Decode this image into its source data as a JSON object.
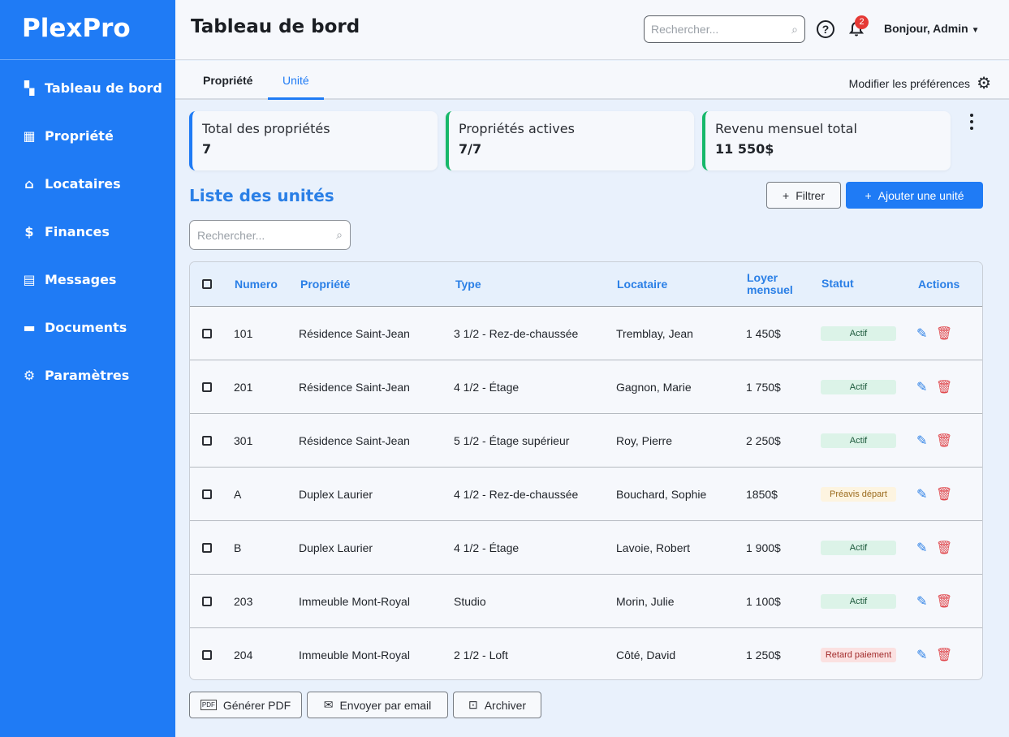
{
  "app": {
    "logo": "PlexPro"
  },
  "sidebar": {
    "items": [
      {
        "label": "Tableau de bord",
        "icon": "dashboard-icon",
        "glyph": "▚"
      },
      {
        "label": "Propriété",
        "icon": "building-icon",
        "glyph": "▦"
      },
      {
        "label": "Locataires",
        "icon": "house-icon",
        "glyph": "⌂"
      },
      {
        "label": "Finances",
        "icon": "dollar-icon",
        "glyph": "$"
      },
      {
        "label": "Messages",
        "icon": "message-icon",
        "glyph": "▤"
      },
      {
        "label": "Documents",
        "icon": "folder-icon",
        "glyph": "▬"
      },
      {
        "label": "Paramètres",
        "icon": "gear-icon",
        "glyph": "⚙"
      }
    ]
  },
  "header": {
    "title": "Tableau de bord",
    "search_placeholder": "Rechercher...",
    "notifications": "2",
    "user": "Bonjour, Admin"
  },
  "tabs": [
    {
      "label": "Propriété",
      "active": false
    },
    {
      "label": "Unité",
      "active": true
    }
  ],
  "prefs_label": "Modifier les préférences",
  "cards": [
    {
      "label": "Total des propriétés",
      "value": "7",
      "accent": "#1f7bf5"
    },
    {
      "label": "Propriétés actives",
      "value": "7/7",
      "accent": "#16b86a"
    },
    {
      "label": "Revenu mensuel total",
      "value": "11 550$",
      "accent": "#16b86a"
    }
  ],
  "list": {
    "title": "Liste des unités",
    "filter_label": "Filtrer",
    "add_label": "Ajouter une unité",
    "search_placeholder": "Rechercher..."
  },
  "table": {
    "headers": [
      "Numero",
      "Propriété",
      "Type",
      "Locataire",
      "Loyer mensuel",
      "Statut",
      "Actions"
    ],
    "rows": [
      {
        "numero": "101",
        "propriete": "Résidence Saint-Jean",
        "type": "3 1/2 - Rez-de-chaussée",
        "locataire": "Tremblay, Jean",
        "loyer": "1 450$",
        "statut": "Actif",
        "kind": "ok"
      },
      {
        "numero": "201",
        "propriete": "Résidence Saint-Jean",
        "type": "4 1/2 - Étage",
        "locataire": "Gagnon, Marie",
        "loyer": "1 750$",
        "statut": "Actif",
        "kind": "ok"
      },
      {
        "numero": "301",
        "propriete": "Résidence Saint-Jean",
        "type": "5 1/2 - Étage supérieur",
        "locataire": "Roy, Pierre",
        "loyer": "2 250$",
        "statut": "Actif",
        "kind": "ok"
      },
      {
        "numero": "A",
        "propriete": "Duplex Laurier",
        "type": "4 1/2 - Rez-de-chaussée",
        "locataire": "Bouchard, Sophie",
        "loyer": "1850$",
        "statut": "Préavis départ",
        "kind": "warn"
      },
      {
        "numero": "B",
        "propriete": "Duplex Laurier",
        "type": "4 1/2 - Étage",
        "locataire": "Lavoie, Robert",
        "loyer": "1 900$",
        "statut": "Actif",
        "kind": "ok"
      },
      {
        "numero": "203",
        "propriete": "Immeuble Mont-Royal",
        "type": "Studio",
        "locataire": "Morin, Julie",
        "loyer": "1 100$",
        "statut": "Actif",
        "kind": "ok"
      },
      {
        "numero": "204",
        "propriete": "Immeuble Mont-Royal",
        "type": "2 1/2 - Loft",
        "locataire": "Côté, David",
        "loyer": "1 250$",
        "statut": "Retard paiement",
        "kind": "late"
      }
    ]
  },
  "status_colors": {
    "ok": {
      "bg": "#dcf3e8",
      "fg": "#1d5a3c"
    },
    "warn": {
      "bg": "#fdf4e0",
      "fg": "#9a6a1c"
    },
    "late": {
      "bg": "#fbe1e1",
      "fg": "#a12a2a"
    }
  },
  "footer": {
    "pdf_label": "Générer PDF",
    "email_label": "Envoyer par email",
    "archive_label": "Archiver"
  }
}
